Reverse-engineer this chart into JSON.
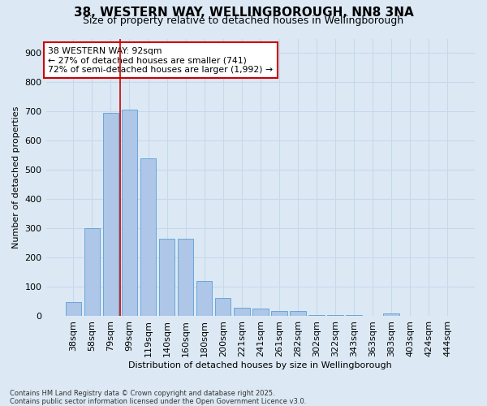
{
  "title_line1": "38, WESTERN WAY, WELLINGBOROUGH, NN8 3NA",
  "title_line2": "Size of property relative to detached houses in Wellingborough",
  "xlabel": "Distribution of detached houses by size in Wellingborough",
  "ylabel": "Number of detached properties",
  "categories": [
    "38sqm",
    "58sqm",
    "79sqm",
    "99sqm",
    "119sqm",
    "140sqm",
    "160sqm",
    "180sqm",
    "200sqm",
    "221sqm",
    "241sqm",
    "261sqm",
    "282sqm",
    "302sqm",
    "322sqm",
    "343sqm",
    "363sqm",
    "383sqm",
    "403sqm",
    "424sqm",
    "444sqm"
  ],
  "values": [
    48,
    300,
    695,
    706,
    540,
    265,
    265,
    122,
    62,
    30,
    25,
    18,
    18,
    4,
    4,
    4,
    0,
    10,
    2,
    0,
    2
  ],
  "bar_color": "#aec6e8",
  "bar_edge_color": "#5a9fd4",
  "grid_color": "#c8d8ec",
  "background_color": "#dce9f5",
  "vline_color": "#cc0000",
  "annotation_text": "38 WESTERN WAY: 92sqm\n← 27% of detached houses are smaller (741)\n72% of semi-detached houses are larger (1,992) →",
  "annotation_box_color": "#ffffff",
  "annotation_box_edge": "#cc0000",
  "ylim": [
    0,
    950
  ],
  "yticks": [
    0,
    100,
    200,
    300,
    400,
    500,
    600,
    700,
    800,
    900
  ],
  "footnote": "Contains HM Land Registry data © Crown copyright and database right 2025.\nContains public sector information licensed under the Open Government Licence v3.0."
}
